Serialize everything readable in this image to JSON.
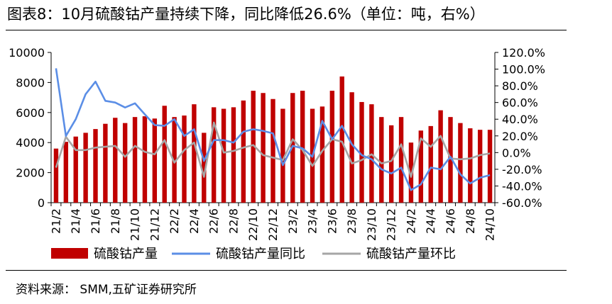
{
  "header": {
    "title": "图表8：10月硫酸钴产量持续下降，同比降低26.6%（单位：吨，右%）"
  },
  "footer": {
    "source": "资料来源：  SMM,五矿证券研究所"
  },
  "colors": {
    "bar": "#c00000",
    "yoy": "#5b8ee6",
    "mom": "#a6a6a6"
  },
  "chart_data": {
    "type": "bar",
    "categories": [
      "21/2",
      "21/3",
      "21/4",
      "21/5",
      "21/6",
      "21/7",
      "21/8",
      "21/9",
      "21/10",
      "21/11",
      "21/12",
      "22/1",
      "22/2",
      "22/3",
      "22/4",
      "22/5",
      "22/6",
      "22/7",
      "22/8",
      "22/9",
      "22/10",
      "22/11",
      "22/12",
      "23/1",
      "23/2",
      "23/3",
      "23/4",
      "23/5",
      "23/6",
      "23/7",
      "23/8",
      "23/9",
      "23/10",
      "23/11",
      "23/12",
      "24/1",
      "24/2",
      "24/3",
      "24/4",
      "24/5",
      "24/6",
      "24/7",
      "24/8",
      "24/9",
      "24/10"
    ],
    "x_tick_labels": [
      "21/2",
      "21/4",
      "21/6",
      "21/8",
      "21/10",
      "21/12",
      "22/2",
      "22/4",
      "22/6",
      "22/8",
      "22/10",
      "22/12",
      "23/2",
      "23/4",
      "23/6",
      "23/8",
      "23/10",
      "23/12",
      "24/2",
      "24/4",
      "24/6",
      "24/8",
      "24/10"
    ],
    "left_axis": {
      "ylim": [
        0,
        10000
      ],
      "ticks": [
        "0",
        "2000",
        "4000",
        "6000",
        "8000",
        "10000"
      ]
    },
    "right_axis": {
      "ylim": [
        -60,
        120
      ],
      "ticks": [
        "-60.0%",
        "-40.0%",
        "-20.0%",
        "0.0%",
        "20.0%",
        "40.0%",
        "60.0%",
        "80.0%",
        "100.0%",
        "120.0%"
      ]
    },
    "grid": false,
    "legend_position": "bottom",
    "series": [
      {
        "name": "硫酸钴产量",
        "type": "bar",
        "axis": "left",
        "values": [
          3600,
          4050,
          4400,
          4650,
          4900,
          5250,
          5650,
          5300,
          5700,
          5750,
          5600,
          6450,
          5700,
          5800,
          6550,
          4650,
          6350,
          6250,
          6350,
          6800,
          7450,
          7300,
          6900,
          6250,
          7300,
          7450,
          6250,
          6400,
          7450,
          8400,
          7350,
          6700,
          6550,
          5700,
          5150,
          5700,
          4000,
          4800,
          5100,
          6150,
          5700,
          5300,
          4950,
          4850,
          4850
        ]
      },
      {
        "name": "硫酸钴产量同比",
        "type": "line",
        "axis": "right",
        "values": [
          101,
          20,
          40,
          70,
          85,
          62,
          60,
          54,
          59,
          46,
          33,
          32,
          40,
          20,
          28,
          -10,
          15,
          15,
          12,
          25,
          28,
          26,
          23,
          -15,
          8,
          5,
          -5,
          38,
          16,
          32,
          10,
          -3,
          -8,
          -20,
          -25,
          -18,
          -45,
          -38,
          -18,
          -20,
          -5,
          -26,
          -37,
          -30,
          -27
        ]
      },
      {
        "name": "硫酸钴产量环比",
        "type": "line",
        "axis": "right",
        "values": [
          -18,
          19,
          3,
          3,
          6,
          7,
          8,
          -5,
          8,
          1,
          -2,
          15,
          -12,
          3,
          12,
          -29,
          36,
          0,
          2,
          6,
          9,
          -3,
          -6,
          -9,
          16,
          3,
          -16,
          2,
          16,
          13,
          -13,
          -9,
          -2,
          -13,
          -10,
          10,
          -29,
          17,
          7,
          20,
          -7,
          -8,
          -7,
          -3,
          -1
        ]
      }
    ]
  }
}
